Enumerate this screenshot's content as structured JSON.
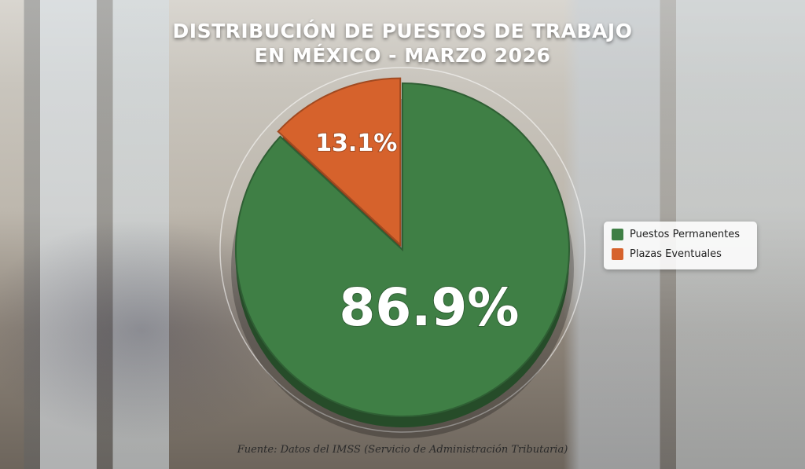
{
  "chart_data": {
    "type": "pie",
    "title": "DISTRIBUCIÓN DE PUESTOS DE TRABAJO EN MÉXICO - MARZO 2026",
    "categories": [
      "Puestos Permanentes",
      "Plazas Eventuales"
    ],
    "values": [
      86.9,
      13.1
    ],
    "value_labels": [
      "86.9%",
      "13.1%"
    ],
    "colors": [
      "#3f7f45",
      "#d6622c"
    ],
    "source": "Fuente: Datos del IMSS (Servicio de Administración Tributaria)"
  }
}
